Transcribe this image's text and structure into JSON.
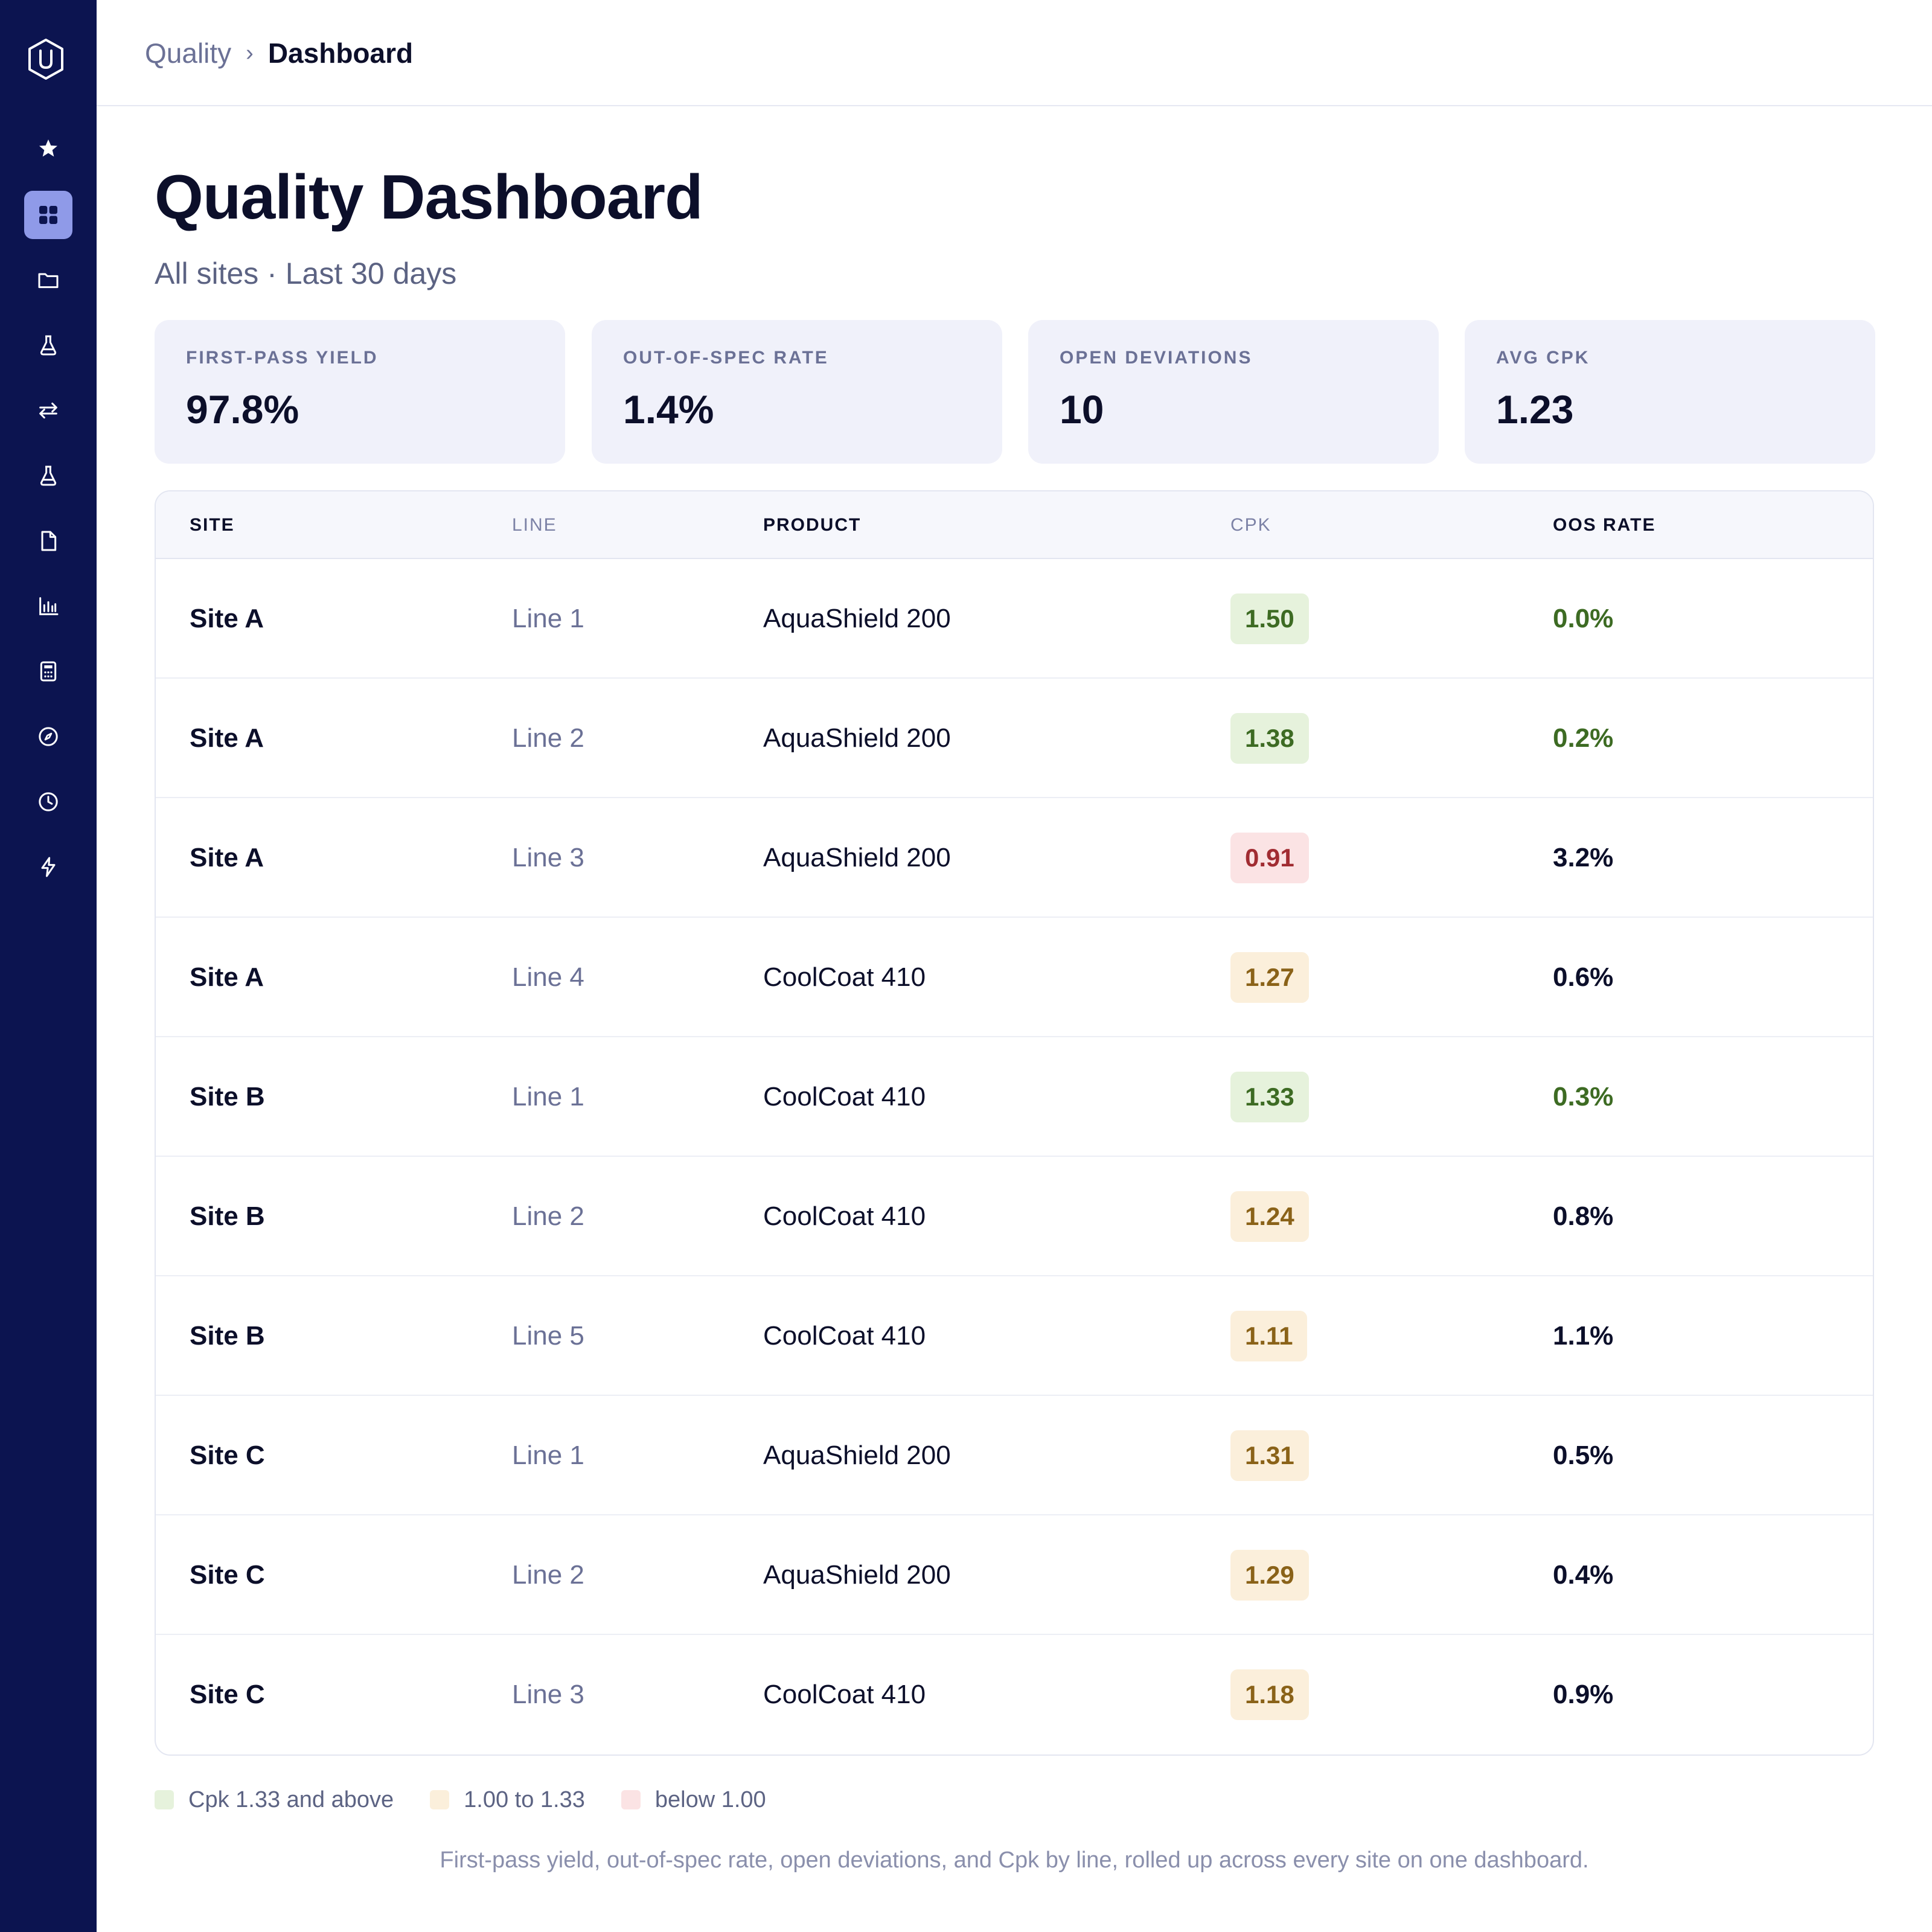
{
  "sidebar": {
    "logo": "hexagon-u-logo",
    "items": [
      {
        "icon": "star-icon",
        "active": false
      },
      {
        "icon": "grid-icon",
        "active": true
      },
      {
        "icon": "folder-icon",
        "active": false
      },
      {
        "icon": "flask-icon",
        "active": false
      },
      {
        "icon": "swap-arrows-icon",
        "active": false
      },
      {
        "icon": "flask-icon",
        "active": false
      },
      {
        "icon": "document-icon",
        "active": false
      },
      {
        "icon": "bar-chart-icon",
        "active": false
      },
      {
        "icon": "calculator-icon",
        "active": false
      },
      {
        "icon": "compass-icon",
        "active": false
      },
      {
        "icon": "clock-icon",
        "active": false
      },
      {
        "icon": "bolt-icon",
        "active": false
      }
    ]
  },
  "breadcrumb": {
    "parent": "Quality",
    "separator": "›",
    "current": "Dashboard"
  },
  "page": {
    "title": "Quality Dashboard",
    "subtitle": "All sites · Last 30 days"
  },
  "kpis": [
    {
      "label": "FIRST-PASS YIELD",
      "value": "97.8%"
    },
    {
      "label": "OUT-OF-SPEC RATE",
      "value": "1.4%"
    },
    {
      "label": "OPEN DEVIATIONS",
      "value": "10"
    },
    {
      "label": "AVG CPK",
      "value": "1.23"
    }
  ],
  "table": {
    "columns": [
      "SITE",
      "LINE",
      "PRODUCT",
      "CPK",
      "OOS RATE"
    ],
    "rows": [
      {
        "site": "Site A",
        "line": "Line 1",
        "product": "AquaShield 200",
        "cpk": "1.50",
        "oos": "0.0%"
      },
      {
        "site": "Site A",
        "line": "Line 2",
        "product": "AquaShield 200",
        "cpk": "1.38",
        "oos": "0.2%"
      },
      {
        "site": "Site A",
        "line": "Line 3",
        "product": "AquaShield 200",
        "cpk": "0.91",
        "oos": "3.2%"
      },
      {
        "site": "Site A",
        "line": "Line 4",
        "product": "CoolCoat 410",
        "cpk": "1.27",
        "oos": "0.6%"
      },
      {
        "site": "Site B",
        "line": "Line 1",
        "product": "CoolCoat 410",
        "cpk": "1.33",
        "oos": "0.3%"
      },
      {
        "site": "Site B",
        "line": "Line 2",
        "product": "CoolCoat 410",
        "cpk": "1.24",
        "oos": "0.8%"
      },
      {
        "site": "Site B",
        "line": "Line 5",
        "product": "CoolCoat 410",
        "cpk": "1.11",
        "oos": "1.1%"
      },
      {
        "site": "Site C",
        "line": "Line 1",
        "product": "AquaShield 200",
        "cpk": "1.31",
        "oos": "0.5%"
      },
      {
        "site": "Site C",
        "line": "Line 2",
        "product": "AquaShield 200",
        "cpk": "1.29",
        "oos": "0.4%"
      },
      {
        "site": "Site C",
        "line": "Line 3",
        "product": "CoolCoat 410",
        "cpk": "1.18",
        "oos": "0.9%"
      }
    ]
  },
  "legend": [
    {
      "label": "Cpk 1.33 and above",
      "color": "#e6f2dc"
    },
    {
      "label": "1.00 to 1.33",
      "color": "#fbefdb"
    },
    {
      "label": "below 1.00",
      "color": "#fbe3e4"
    }
  ],
  "footnote": "First-pass yield, out-of-spec rate, open deviations, and Cpk by line, rolled up across every site on one dashboard.",
  "colors": {
    "sidebar": "#0c1450",
    "accent": "#8f9ae8",
    "good": "#3d6b23",
    "warn": "#8a6218",
    "bad": "#a12c32"
  }
}
